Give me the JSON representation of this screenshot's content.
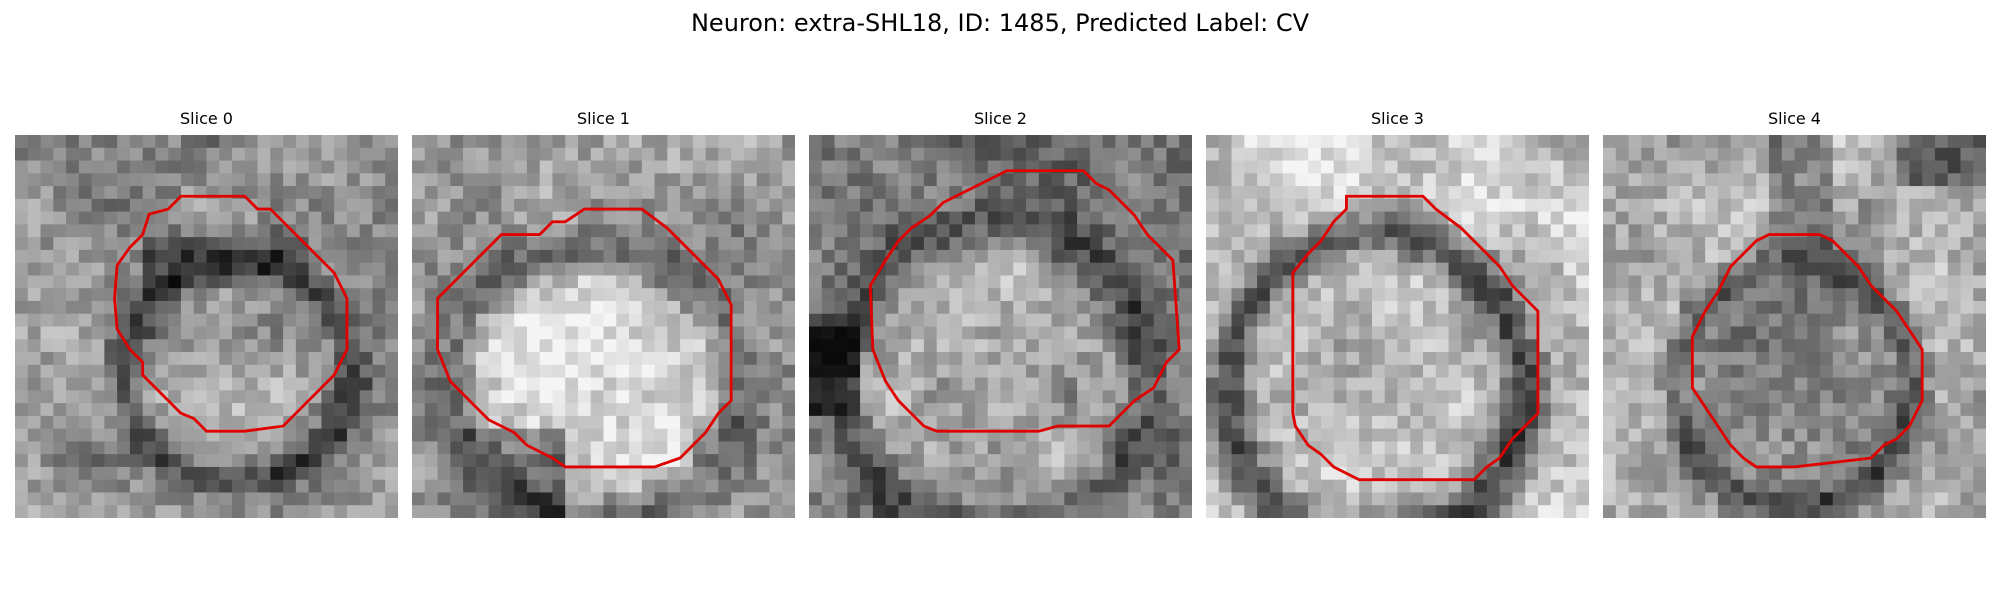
{
  "figure": {
    "title": "Neuron: extra-SHL18, ID: 1485, Predicted Label: CV"
  },
  "contour_color": "#e00000",
  "colormap": "gray",
  "panels": [
    {
      "title": "Slice 0",
      "contour_level": 0
    },
    {
      "title": "Slice 1",
      "contour_level": 1
    },
    {
      "title": "Slice 2",
      "contour_level": 2
    },
    {
      "title": "Slice 3",
      "contour_level": 3
    },
    {
      "title": "Slice 4",
      "contour_level": 4
    }
  ]
}
